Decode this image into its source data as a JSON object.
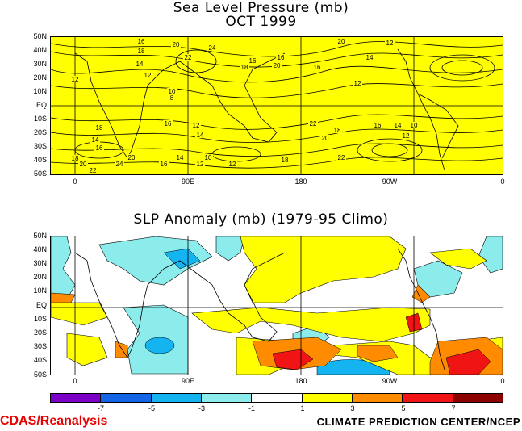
{
  "top_panel": {
    "title_line1": "Sea Level Pressure (mb)",
    "title_line2": "OCT 1999",
    "fill_color": "#ffff00",
    "lat_labels": [
      "50N",
      "40N",
      "30N",
      "20N",
      "10N",
      "EQ",
      "10S",
      "20S",
      "30S",
      "40S",
      "50S"
    ],
    "lon_labels": [
      "0",
      "90E",
      "180",
      "90W",
      "0"
    ],
    "contour_labels": [
      "16",
      "18",
      "20",
      "22",
      "24",
      "14",
      "12",
      "10",
      "8",
      "18",
      "16",
      "16",
      "20",
      "20",
      "16",
      "12",
      "14",
      "12",
      "12",
      "18",
      "16",
      "12",
      "14",
      "22",
      "20",
      "18",
      "16",
      "14",
      "12",
      "10",
      "14",
      "16",
      "18",
      "20",
      "22",
      "24",
      "20",
      "16",
      "14",
      "12",
      "10",
      "12",
      "18",
      "22"
    ]
  },
  "bottom_panel": {
    "title": "SLP Anomaly (mb) (1979-95 Climo)",
    "lat_labels": [
      "50N",
      "40N",
      "30N",
      "20N",
      "10N",
      "EQ",
      "10S",
      "20S",
      "30S",
      "40S",
      "50S"
    ],
    "lon_labels": [
      "0",
      "90E",
      "180",
      "90W",
      "0"
    ]
  },
  "colorbar": {
    "labels": [
      "-7",
      "-5",
      "-3",
      "-1",
      "1",
      "3",
      "5",
      "7"
    ],
    "colors": [
      "#7b00c8",
      "#1464e6",
      "#14b4f0",
      "#8cebeb",
      "#ffffff",
      "#ffff00",
      "#ff8c00",
      "#f01414",
      "#8c0000"
    ]
  },
  "footer": {
    "left": "CDAS/Reanalysis",
    "right": "CLIMATE PREDICTION CENTER/NCEP"
  }
}
